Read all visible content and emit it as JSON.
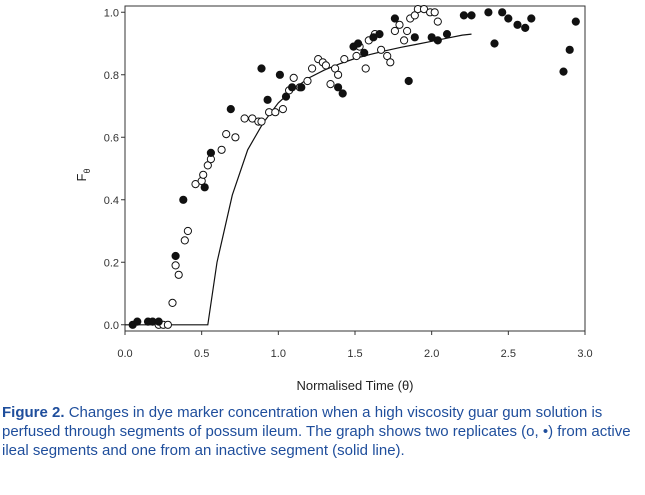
{
  "chart_data": {
    "type": "scatter",
    "title": "",
    "xlabel": "Normalised Time (θ)",
    "ylabel": "F",
    "ylabel_subscript": "θ",
    "xlim": [
      0.0,
      3.0
    ],
    "ylim": [
      -0.02,
      1.02
    ],
    "xticks": [
      0.0,
      0.5,
      1.0,
      1.5,
      2.0,
      2.5,
      3.0
    ],
    "yticks": [
      0.0,
      0.2,
      0.4,
      0.6,
      0.8,
      1.0
    ],
    "xtick_labels": [
      "0.0",
      "0.5",
      "1.0",
      "1.5",
      "2.0",
      "2.5",
      "3.0"
    ],
    "ytick_labels": [
      "0.0",
      "0.2",
      "0.4",
      "0.6",
      "0.8",
      "1.0"
    ],
    "grid": false,
    "series": [
      {
        "marker": "open-circle",
        "points": [
          [
            0.22,
            0.0
          ],
          [
            0.25,
            0.0
          ],
          [
            0.28,
            0.0
          ],
          [
            0.31,
            0.07
          ],
          [
            0.33,
            0.19
          ],
          [
            0.35,
            0.16
          ],
          [
            0.39,
            0.27
          ],
          [
            0.41,
            0.3
          ],
          [
            0.46,
            0.45
          ],
          [
            0.5,
            0.46
          ],
          [
            0.51,
            0.48
          ],
          [
            0.54,
            0.51
          ],
          [
            0.56,
            0.53
          ],
          [
            0.63,
            0.56
          ],
          [
            0.66,
            0.61
          ],
          [
            0.72,
            0.6
          ],
          [
            0.78,
            0.66
          ],
          [
            0.83,
            0.66
          ],
          [
            0.87,
            0.65
          ],
          [
            0.89,
            0.65
          ],
          [
            0.94,
            0.68
          ],
          [
            0.98,
            0.68
          ],
          [
            1.03,
            0.69
          ],
          [
            1.07,
            0.75
          ],
          [
            1.1,
            0.79
          ],
          [
            1.14,
            0.76
          ],
          [
            1.19,
            0.78
          ],
          [
            1.22,
            0.82
          ],
          [
            1.26,
            0.85
          ],
          [
            1.29,
            0.84
          ],
          [
            1.31,
            0.83
          ],
          [
            1.34,
            0.77
          ],
          [
            1.37,
            0.82
          ],
          [
            1.39,
            0.8
          ],
          [
            1.43,
            0.85
          ],
          [
            1.51,
            0.86
          ],
          [
            1.53,
            0.89
          ],
          [
            1.57,
            0.82
          ],
          [
            1.59,
            0.91
          ],
          [
            1.63,
            0.93
          ],
          [
            1.67,
            0.88
          ],
          [
            1.71,
            0.86
          ],
          [
            1.73,
            0.84
          ],
          [
            1.76,
            0.94
          ],
          [
            1.79,
            0.96
          ],
          [
            1.82,
            0.91
          ],
          [
            1.84,
            0.94
          ],
          [
            1.86,
            0.98
          ],
          [
            1.89,
            0.99
          ],
          [
            1.91,
            1.01
          ],
          [
            1.95,
            1.01
          ],
          [
            1.99,
            1.0
          ],
          [
            2.02,
            1.0
          ],
          [
            2.04,
            0.97
          ]
        ]
      },
      {
        "marker": "filled-circle",
        "points": [
          [
            0.05,
            0.0
          ],
          [
            0.08,
            0.01
          ],
          [
            0.15,
            0.01
          ],
          [
            0.18,
            0.01
          ],
          [
            0.22,
            0.01
          ],
          [
            0.33,
            0.22
          ],
          [
            0.38,
            0.4
          ],
          [
            0.52,
            0.44
          ],
          [
            0.56,
            0.55
          ],
          [
            0.69,
            0.69
          ],
          [
            0.89,
            0.82
          ],
          [
            0.93,
            0.72
          ],
          [
            1.01,
            0.8
          ],
          [
            1.05,
            0.73
          ],
          [
            1.09,
            0.76
          ],
          [
            1.15,
            0.76
          ],
          [
            1.39,
            0.76
          ],
          [
            1.42,
            0.74
          ],
          [
            1.49,
            0.89
          ],
          [
            1.52,
            0.9
          ],
          [
            1.56,
            0.87
          ],
          [
            1.62,
            0.92
          ],
          [
            1.66,
            0.93
          ],
          [
            1.76,
            0.98
          ],
          [
            1.85,
            0.78
          ],
          [
            1.89,
            0.92
          ],
          [
            2.0,
            0.92
          ],
          [
            2.04,
            0.91
          ],
          [
            2.1,
            0.93
          ],
          [
            2.21,
            0.99
          ],
          [
            2.26,
            0.99
          ],
          [
            2.37,
            1.0
          ],
          [
            2.41,
            0.9
          ],
          [
            2.46,
            1.0
          ],
          [
            2.5,
            0.98
          ],
          [
            2.56,
            0.96
          ],
          [
            2.61,
            0.95
          ],
          [
            2.65,
            0.98
          ],
          [
            2.86,
            0.81
          ],
          [
            2.9,
            0.88
          ],
          [
            2.94,
            0.97
          ]
        ]
      },
      {
        "marker": "solid-line",
        "points": [
          [
            0.0,
            0.0
          ],
          [
            0.54,
            0.0
          ],
          [
            0.6,
            0.2
          ],
          [
            0.7,
            0.415
          ],
          [
            0.8,
            0.56
          ],
          [
            0.9,
            0.645
          ],
          [
            1.0,
            0.71
          ],
          [
            1.1,
            0.755
          ],
          [
            1.2,
            0.79
          ],
          [
            1.3,
            0.815
          ],
          [
            1.4,
            0.835
          ],
          [
            1.5,
            0.852
          ],
          [
            1.6,
            0.865
          ],
          [
            1.7,
            0.877
          ],
          [
            1.8,
            0.888
          ],
          [
            1.9,
            0.897
          ],
          [
            2.0,
            0.907
          ],
          [
            2.1,
            0.917
          ],
          [
            2.2,
            0.927
          ],
          [
            2.26,
            0.93
          ]
        ]
      }
    ]
  },
  "caption": {
    "label": "Figure 2.",
    "text": "Changes in dye marker concentration when a high viscosity guar gum solution is perfused through segments of possum ileum. The graph shows two replicates (o, •) from active ileal segments and one from an inactive segment (solid line)."
  },
  "colors": {
    "caption": "#1f4e9c",
    "marker": "#111111",
    "axis": "#333333"
  }
}
